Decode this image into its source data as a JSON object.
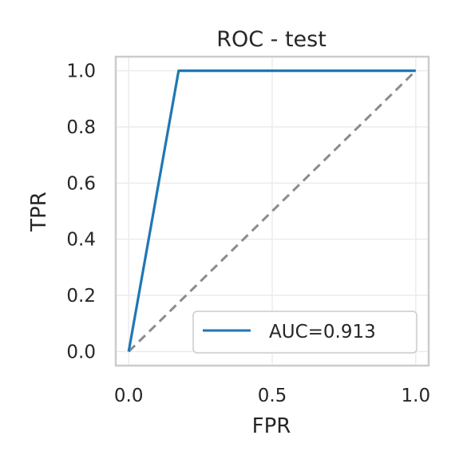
{
  "chart_data": {
    "type": "line",
    "title": "ROC - test",
    "xlabel": "FPR",
    "ylabel": "TPR",
    "xlim": [
      -0.045,
      1.045
    ],
    "ylim": [
      -0.05,
      1.05
    ],
    "xticks": [
      0.0,
      0.5,
      1.0
    ],
    "xtick_labels": [
      "0.0",
      "0.5",
      "1.0"
    ],
    "yticks": [
      0.0,
      0.2,
      0.4,
      0.6,
      0.8,
      1.0
    ],
    "ytick_labels": [
      "0.0",
      "0.2",
      "0.4",
      "0.6",
      "0.8",
      "1.0"
    ],
    "grid": true,
    "legend_position": "bottom-right",
    "series": [
      {
        "name": "AUC=0.913",
        "color": "#1f77b4",
        "style": "solid",
        "x": [
          0.0,
          0.174,
          1.0
        ],
        "y": [
          0.0,
          1.0,
          1.0
        ]
      }
    ],
    "reference_line": {
      "color": "#8c8c8c",
      "style": "dashed",
      "x": [
        0.0,
        1.0
      ],
      "y": [
        0.0,
        1.0
      ]
    }
  }
}
